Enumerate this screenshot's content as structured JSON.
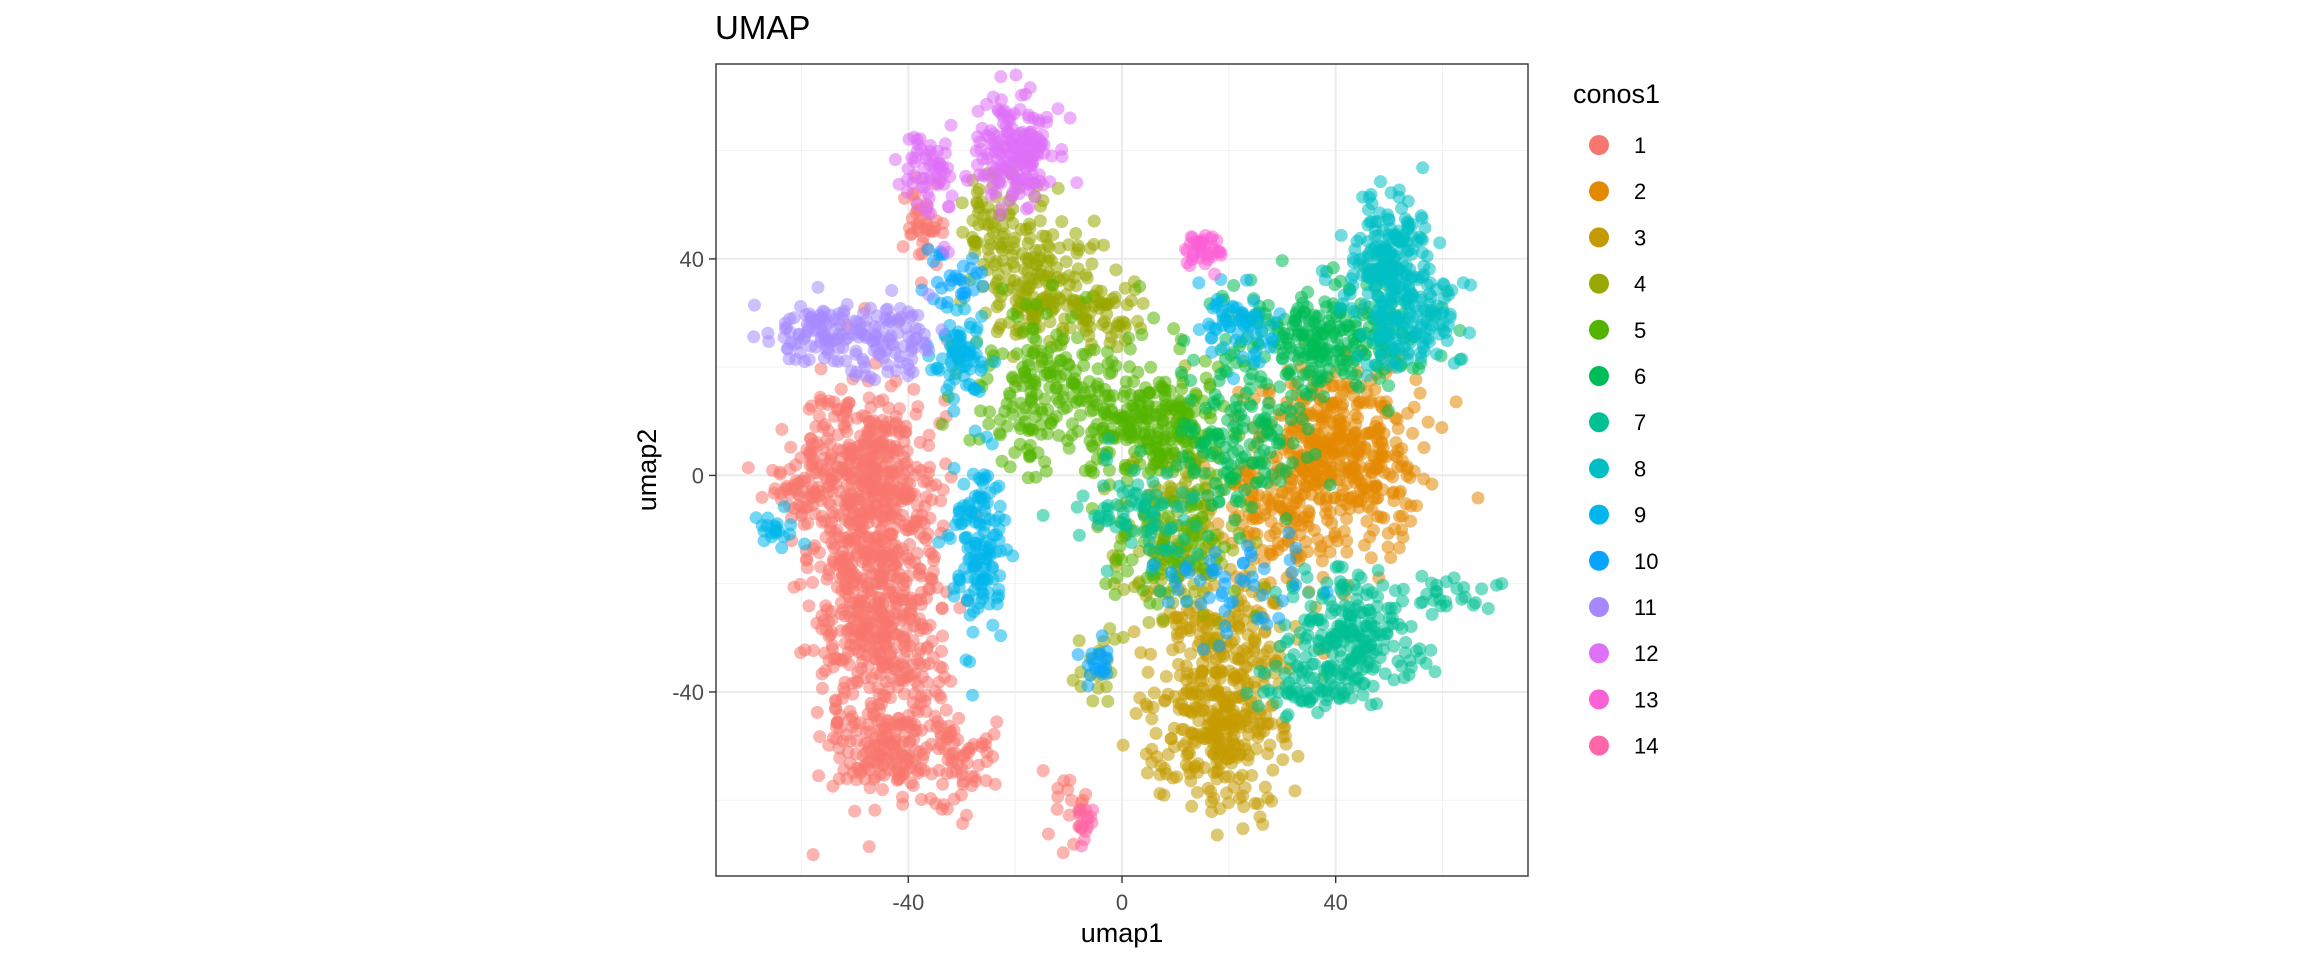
{
  "chart_data": {
    "type": "scatter",
    "title": "UMAP",
    "xlabel": "umap1",
    "ylabel": "umap2",
    "xlim": [
      -76,
      76
    ],
    "ylim": [
      -74,
      76
    ],
    "x_ticks": [
      -40,
      0,
      40
    ],
    "x_tick_labels": [
      "-40",
      "0",
      "40"
    ],
    "y_ticks": [
      -40,
      0,
      40
    ],
    "y_tick_labels": [
      "-40",
      "0",
      "40"
    ],
    "grid": true,
    "legend_position": "right",
    "legend_title": "conos1",
    "series": [
      {
        "name": "1",
        "color": "#F8766D",
        "clusters": [
          {
            "cx": -46,
            "cy": -22,
            "sx": 6,
            "sy": 16,
            "n": 700
          },
          {
            "cx": -48,
            "cy": 2,
            "sx": 6,
            "sy": 7,
            "n": 250
          },
          {
            "cx": -42,
            "cy": -50,
            "sx": 6,
            "sy": 5,
            "n": 150
          },
          {
            "cx": -37,
            "cy": 46,
            "sx": 2,
            "sy": 4,
            "n": 40
          },
          {
            "cx": -60,
            "cy": -2,
            "sx": 3,
            "sy": 3,
            "n": 40
          },
          {
            "cx": -30,
            "cy": -52,
            "sx": 3,
            "sy": 4,
            "n": 40
          },
          {
            "cx": -10,
            "cy": -61,
            "sx": 2,
            "sy": 4,
            "n": 20
          }
        ]
      },
      {
        "name": "2",
        "color": "#E38900",
        "clusters": [
          {
            "cx": 40,
            "cy": 4,
            "sx": 8,
            "sy": 9,
            "n": 450
          },
          {
            "cx": 30,
            "cy": -8,
            "sx": 6,
            "sy": 6,
            "n": 100
          }
        ]
      },
      {
        "name": "3",
        "color": "#C49A00",
        "clusters": [
          {
            "cx": 18,
            "cy": -45,
            "sx": 6,
            "sy": 8,
            "n": 320
          },
          {
            "cx": 20,
            "cy": -30,
            "sx": 7,
            "sy": 6,
            "n": 120
          }
        ]
      },
      {
        "name": "4",
        "color": "#99A800",
        "clusters": [
          {
            "cx": -16,
            "cy": 36,
            "sx": 6,
            "sy": 6,
            "n": 180
          },
          {
            "cx": -4,
            "cy": 30,
            "sx": 4,
            "sy": 3,
            "n": 60
          },
          {
            "cx": -24,
            "cy": 48,
            "sx": 3,
            "sy": 5,
            "n": 50
          },
          {
            "cx": 10,
            "cy": -10,
            "sx": 6,
            "sy": 8,
            "n": 180
          },
          {
            "cx": -5,
            "cy": -36,
            "sx": 2,
            "sy": 3,
            "n": 20
          }
        ]
      },
      {
        "name": "5",
        "color": "#53B400",
        "clusters": [
          {
            "cx": 5,
            "cy": 10,
            "sx": 6,
            "sy": 6,
            "n": 250
          },
          {
            "cx": -15,
            "cy": 15,
            "sx": 8,
            "sy": 7,
            "n": 180
          },
          {
            "cx": 8,
            "cy": -15,
            "sx": 5,
            "sy": 6,
            "n": 60
          }
        ]
      },
      {
        "name": "6",
        "color": "#00BC56",
        "clusters": [
          {
            "cx": 40,
            "cy": 26,
            "sx": 9,
            "sy": 5,
            "n": 250
          },
          {
            "cx": 22,
            "cy": 8,
            "sx": 6,
            "sy": 8,
            "n": 160
          }
        ]
      },
      {
        "name": "7",
        "color": "#00C094",
        "clusters": [
          {
            "cx": 44,
            "cy": -30,
            "sx": 6,
            "sy": 6,
            "n": 220
          },
          {
            "cx": 33,
            "cy": -38,
            "sx": 4,
            "sy": 3,
            "n": 60
          },
          {
            "cx": 62,
            "cy": -22,
            "sx": 4,
            "sy": 2,
            "n": 25
          },
          {
            "cx": 4,
            "cy": -8,
            "sx": 6,
            "sy": 6,
            "n": 80
          }
        ]
      },
      {
        "name": "8",
        "color": "#00BFC4",
        "clusters": [
          {
            "cx": 50,
            "cy": 40,
            "sx": 4,
            "sy": 6,
            "n": 200
          },
          {
            "cx": 54,
            "cy": 28,
            "sx": 5,
            "sy": 5,
            "n": 120
          }
        ]
      },
      {
        "name": "9",
        "color": "#00B6EB",
        "clusters": [
          {
            "cx": -27,
            "cy": -12,
            "sx": 2.5,
            "sy": 8,
            "n": 140
          },
          {
            "cx": -30,
            "cy": 22,
            "sx": 3,
            "sy": 4,
            "n": 70
          },
          {
            "cx": 22,
            "cy": 28,
            "sx": 4,
            "sy": 4,
            "n": 60
          },
          {
            "cx": -65,
            "cy": -10,
            "sx": 2,
            "sy": 1.5,
            "n": 20
          }
        ]
      },
      {
        "name": "10",
        "color": "#06A4FF",
        "clusters": [
          {
            "cx": -5,
            "cy": -35,
            "sx": 1.5,
            "sy": 2,
            "n": 20
          },
          {
            "cx": 20,
            "cy": -20,
            "sx": 6,
            "sy": 4,
            "n": 50
          },
          {
            "cx": -32,
            "cy": 36,
            "sx": 3,
            "sy": 3,
            "n": 30
          }
        ]
      },
      {
        "name": "11",
        "color": "#A58AFF",
        "clusters": [
          {
            "cx": -58,
            "cy": 26,
            "sx": 4,
            "sy": 2.5,
            "n": 80
          },
          {
            "cx": -45,
            "cy": 25,
            "sx": 5,
            "sy": 4,
            "n": 100
          }
        ]
      },
      {
        "name": "12",
        "color": "#DF70F8",
        "clusters": [
          {
            "cx": -20,
            "cy": 60,
            "sx": 4,
            "sy": 5,
            "n": 180
          },
          {
            "cx": -36,
            "cy": 56,
            "sx": 2.5,
            "sy": 4,
            "n": 60
          }
        ]
      },
      {
        "name": "13",
        "color": "#FB61D7",
        "clusters": [
          {
            "cx": 16,
            "cy": 42,
            "sx": 2,
            "sy": 1.5,
            "n": 40
          }
        ]
      },
      {
        "name": "14",
        "color": "#FF66A8",
        "clusters": [
          {
            "cx": -7,
            "cy": -64,
            "sx": 1,
            "sy": 2,
            "n": 15
          }
        ]
      }
    ]
  }
}
